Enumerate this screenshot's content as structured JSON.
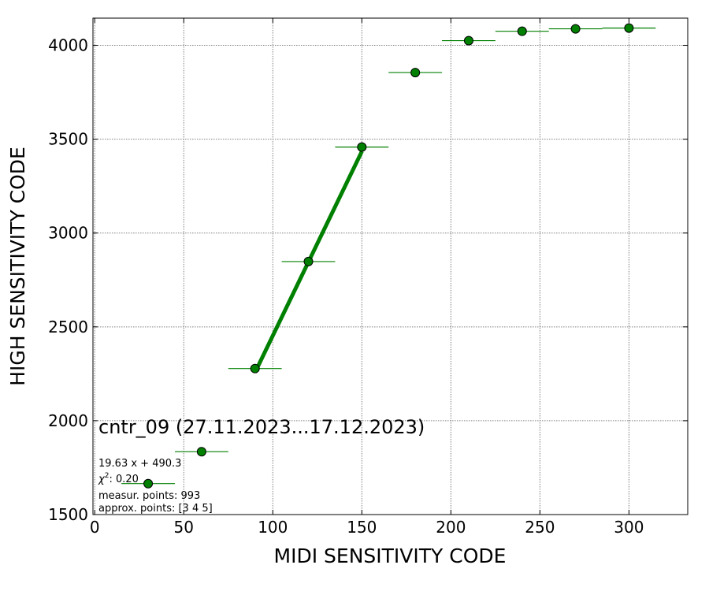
{
  "chart_data": {
    "type": "scatter",
    "title": "",
    "xlabel": "MIDI SENSITIVITY CODE",
    "ylabel": "HIGH SENSITIVITY CODE",
    "xlim": [
      -1,
      333
    ],
    "ylim": [
      1500,
      4145
    ],
    "x_ticks": [
      0,
      50,
      100,
      150,
      200,
      250,
      300
    ],
    "y_ticks": [
      1500,
      2000,
      2500,
      3000,
      3500,
      4000
    ],
    "grid": true,
    "series": [
      {
        "marker": "circle",
        "color": "#008000",
        "x_error": 15,
        "points": [
          {
            "x": 30,
            "y": 1665
          },
          {
            "x": 60,
            "y": 1835
          },
          {
            "x": 90,
            "y": 2278
          },
          {
            "x": 120,
            "y": 2848
          },
          {
            "x": 150,
            "y": 3458
          },
          {
            "x": 180,
            "y": 3855
          },
          {
            "x": 210,
            "y": 4025
          },
          {
            "x": 240,
            "y": 4075
          },
          {
            "x": 270,
            "y": 4088
          },
          {
            "x": 300,
            "y": 4092
          }
        ]
      }
    ],
    "fit": {
      "slope": 19.63,
      "intercept": 490.3,
      "x_range": [
        90,
        150
      ],
      "color": "#008000"
    },
    "annotations": {
      "title_text": "cntr_09 (27.11.2023...17.12.2023)",
      "equation": "19.63 x + 490.3",
      "chi2_label": "χ",
      "chi2_sup": "2",
      "chi2_value": ": 0.20",
      "measur_points": "measur. points: 993",
      "approx_points": "approx. points: [3 4 5]"
    }
  }
}
